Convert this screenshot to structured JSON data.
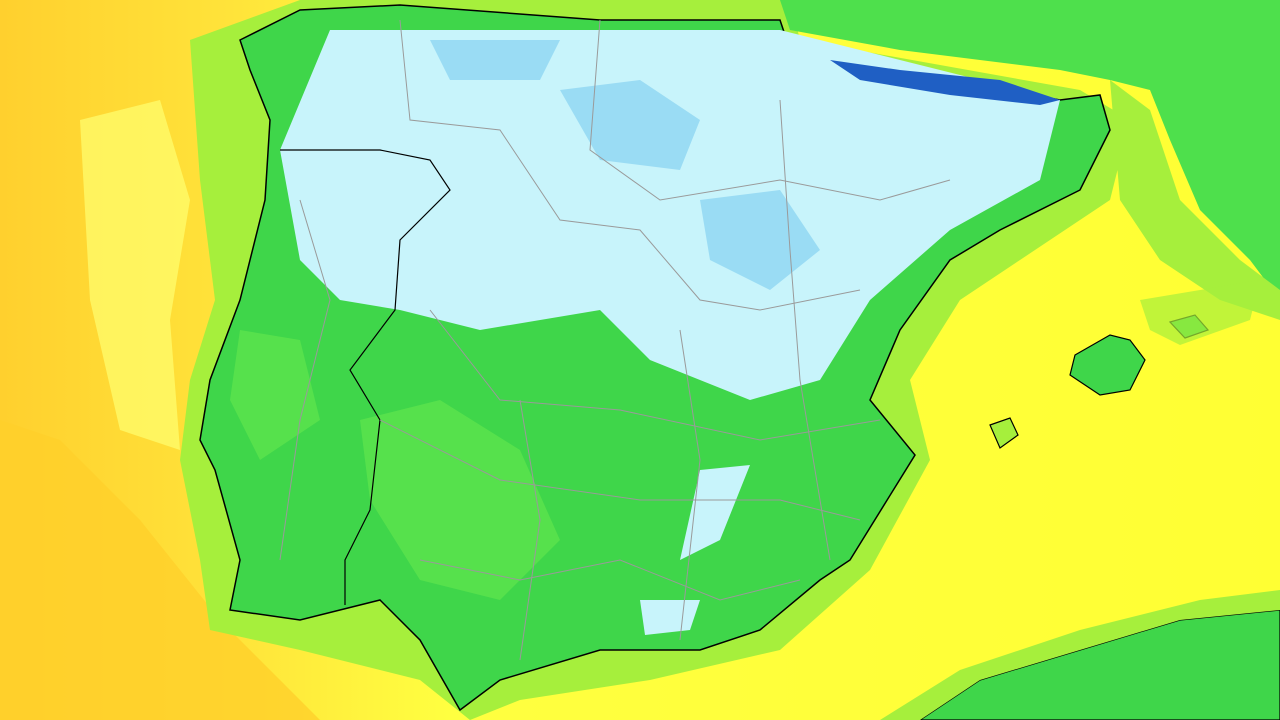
{
  "map": {
    "colors": {
      "sea_warm": "#ffd633",
      "sea_mild": "#ffff33",
      "coast_band": "#a8f03a",
      "land_green": "#3ed84a",
      "land_light_green": "#66e84e",
      "cold_cyan": "#c8f4fb",
      "cold_blue": "#8fd6f2",
      "very_cold": "#1f5fc4",
      "borders": "#9a9a9a",
      "coastline": "#000000"
    }
  }
}
